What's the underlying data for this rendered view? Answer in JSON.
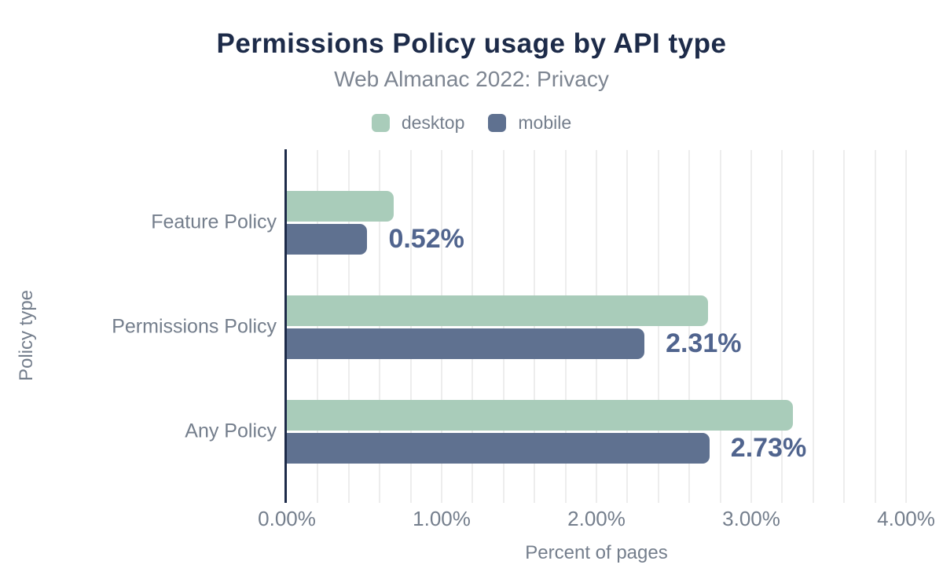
{
  "header": {
    "title": "Permissions Policy usage by API type",
    "subtitle": "Web Almanac 2022: Privacy"
  },
  "legend": {
    "items": [
      {
        "label": "desktop",
        "color": "#a9ccba"
      },
      {
        "label": "mobile",
        "color": "#5f7190"
      }
    ]
  },
  "chart_data": {
    "type": "bar",
    "orientation": "horizontal",
    "title": "Permissions Policy usage by API type",
    "subtitle": "Web Almanac 2022: Privacy",
    "categories": [
      "Feature Policy",
      "Permissions Policy",
      "Any Policy"
    ],
    "series": [
      {
        "name": "desktop",
        "color": "#a9ccba",
        "values": [
          0.69,
          2.72,
          3.27
        ]
      },
      {
        "name": "mobile",
        "color": "#5f7190",
        "values": [
          0.52,
          2.31,
          2.73
        ]
      }
    ],
    "data_labels": {
      "on_series": "mobile",
      "texts": [
        "0.52%",
        "2.31%",
        "2.73%"
      ],
      "color": "#50648e"
    },
    "xlabel": "Percent of pages",
    "ylabel": "Policy type",
    "xlim": [
      0,
      4
    ],
    "xticks": [
      {
        "value": 0,
        "label": "0.00%"
      },
      {
        "value": 1,
        "label": "1.00%"
      },
      {
        "value": 2,
        "label": "2.00%"
      },
      {
        "value": 3,
        "label": "3.00%"
      },
      {
        "value": 4,
        "label": "4.00%"
      }
    ],
    "grid": {
      "interval": 0.2,
      "color": "#ededed",
      "visible": true
    },
    "legend_position": "top",
    "colors": {
      "title": "#1d2b49",
      "axis": "#1d2b49",
      "text": "#747e8c",
      "subtitle_text": "#7d8591"
    }
  }
}
